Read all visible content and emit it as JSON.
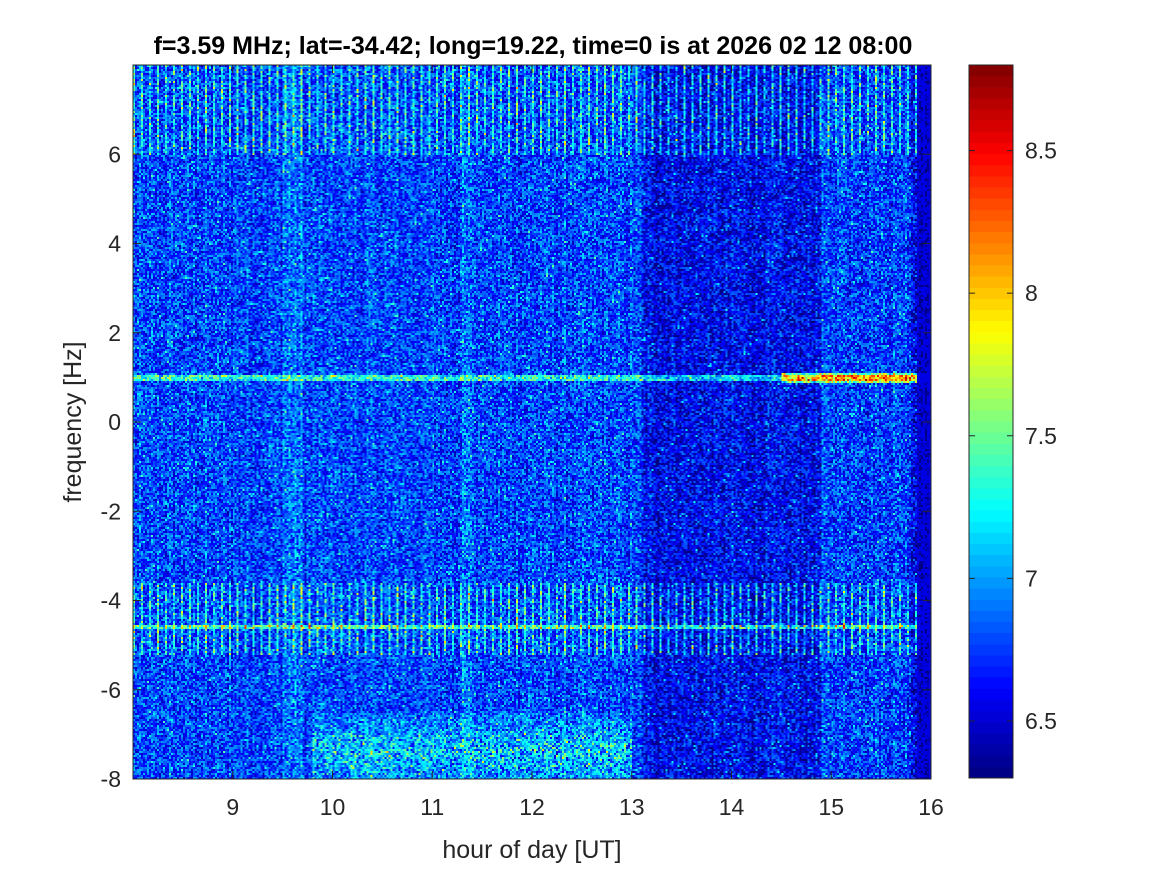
{
  "chart_data": {
    "type": "heatmap",
    "title": "f=3.59 MHz;  lat=-34.42; long=19.22, time=0 is at 2026 02 12 08:00",
    "xlabel": "hour of day [UT]",
    "ylabel": "frequency [Hz]",
    "xlim": [
      8,
      16
    ],
    "ylim": [
      -8,
      8
    ],
    "x_ticks": [
      9,
      10,
      11,
      12,
      13,
      14,
      15,
      16
    ],
    "x_tick_labels": [
      "9",
      "10",
      "11",
      "12",
      "13",
      "14",
      "15",
      "16"
    ],
    "y_ticks": [
      -8,
      -6,
      -4,
      -2,
      0,
      2,
      4,
      6
    ],
    "y_tick_labels": [
      "-8",
      "-6",
      "-4",
      "-2",
      "0",
      "2",
      "4",
      "6"
    ],
    "colormap": "jet",
    "clim": [
      6.3,
      8.8
    ],
    "colorbar_ticks": [
      6.5,
      7,
      7.5,
      8,
      8.5
    ],
    "colorbar_tick_labels": [
      "6.5",
      "7",
      "7.5",
      "8",
      "8.5"
    ],
    "field": {
      "background_level": 6.75,
      "noise_amplitude": 0.3,
      "horizontal_lines_hz": [
        1.0,
        -4.6
      ],
      "strong_line_hz": 1.0,
      "strong_line_start_hour": 14.5,
      "dark_regions_hours": [
        [
          13.1,
          14.9
        ],
        [
          15.8,
          16.0
        ]
      ],
      "bright_regions_hours": [
        [
          9.5,
          9.7
        ],
        [
          11.3,
          11.4
        ]
      ],
      "lower_band_hz": [
        -8,
        -6.5
      ],
      "lower_band_hours": [
        9.8,
        13.0
      ],
      "vertical_streak_bands_hz": [
        [
          6.0,
          8.0
        ],
        [
          -5.2,
          -3.6
        ]
      ]
    }
  }
}
